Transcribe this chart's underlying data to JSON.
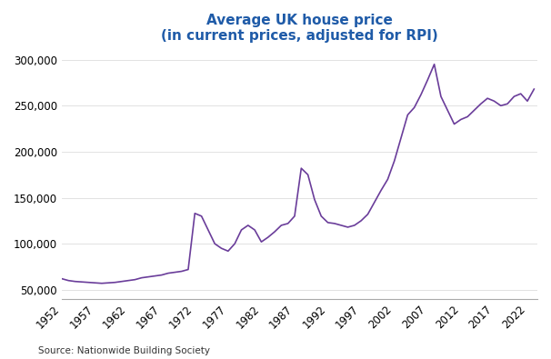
{
  "title_line1": "Average UK house price",
  "title_line2": "(in current prices, adjusted for RPI)",
  "title_color": "#1F5BA8",
  "subtitle_color": "#1F5BA8",
  "line_color": "#6A3D9A",
  "source_text": "Source: Nationwide Building Society",
  "background_color": "#FFFFFF",
  "ylim": [
    40000,
    310000
  ],
  "yticks": [
    50000,
    100000,
    150000,
    200000,
    250000,
    300000
  ],
  "xtick_labels": [
    "1952",
    "1957",
    "1962",
    "1967",
    "1972",
    "1977",
    "1982",
    "1987",
    "1992",
    "1997",
    "2002",
    "2007",
    "2012",
    "2017",
    "2022"
  ],
  "years": [
    1952,
    1953,
    1954,
    1955,
    1956,
    1957,
    1958,
    1959,
    1960,
    1961,
    1962,
    1963,
    1964,
    1965,
    1966,
    1967,
    1968,
    1969,
    1970,
    1971,
    1972,
    1973,
    1974,
    1975,
    1976,
    1977,
    1978,
    1979,
    1980,
    1981,
    1982,
    1983,
    1984,
    1985,
    1986,
    1987,
    1988,
    1989,
    1990,
    1991,
    1992,
    1993,
    1994,
    1995,
    1996,
    1997,
    1998,
    1999,
    2000,
    2001,
    2002,
    2003,
    2004,
    2005,
    2006,
    2007,
    2008,
    2009,
    2010,
    2011,
    2012,
    2013,
    2014,
    2015,
    2016,
    2017,
    2018,
    2019,
    2020,
    2021,
    2022,
    2023
  ],
  "values": [
    62000,
    60000,
    59000,
    58500,
    58000,
    57500,
    57000,
    57500,
    58000,
    59000,
    60000,
    61000,
    63000,
    64000,
    65000,
    66000,
    68000,
    69000,
    70000,
    72000,
    133000,
    130000,
    115000,
    100000,
    95000,
    92000,
    100000,
    115000,
    120000,
    115000,
    102000,
    107000,
    113000,
    120000,
    122000,
    130000,
    182000,
    175000,
    148000,
    130000,
    123000,
    122000,
    120000,
    118000,
    120000,
    125000,
    132000,
    145000,
    158000,
    170000,
    190000,
    215000,
    240000,
    248000,
    262000,
    278000,
    295000,
    260000,
    245000,
    230000,
    235000,
    238000,
    245000,
    252000,
    258000,
    255000,
    250000,
    252000,
    260000,
    263000,
    255000,
    268000
  ]
}
